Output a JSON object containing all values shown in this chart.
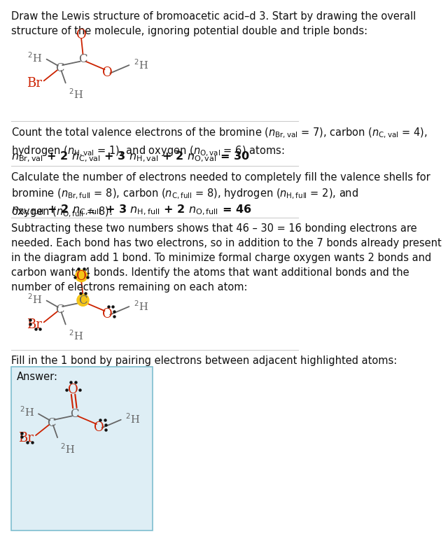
{
  "bg_color": "#ffffff",
  "red_color": "#cc2200",
  "gray_color": "#666666",
  "highlight_color": "#f5c518",
  "answer_bg": "#deeef5",
  "answer_border": "#7fbfcf",
  "sep_color": "#cccccc",
  "text_color": "#111111",
  "title": "Draw the Lewis structure of bromoacetic acid–d 3. Start by drawing the overall structure of the molecule, ignoring potential double and triple bonds:",
  "s2_line1": "Count the total valence electrons of the bromine (",
  "s2_line2": ") atoms:",
  "s2_eq": "n₂r,val + 2 n₃,val + 3 n₄,val + 2 n₅,val = 30",
  "s3_line1": "Calculate the number of electrons needed to completely fill the valence shells for",
  "s3_eq": "n₂r,full + 2 n₃,full + 3 n₄,full + 2 n₅,full = 46",
  "s4_para": "Subtracting these two numbers shows that 46 – 30 = 16 bonding electrons are\nneeded. Each bond has two electrons, so in addition to the 7 bonds already present\nin the diagram add 1 bond. To minimize formal charge oxygen wants 2 bonds and\ncarbon wants 4 bonds. Identify the atoms that want additional bonds and the\nnumber of electrons remaining on each atom:",
  "s5_text": "Fill in the 1 bond by pairing electrons between adjacent highlighted atoms:",
  "answer_label": "Answer:"
}
